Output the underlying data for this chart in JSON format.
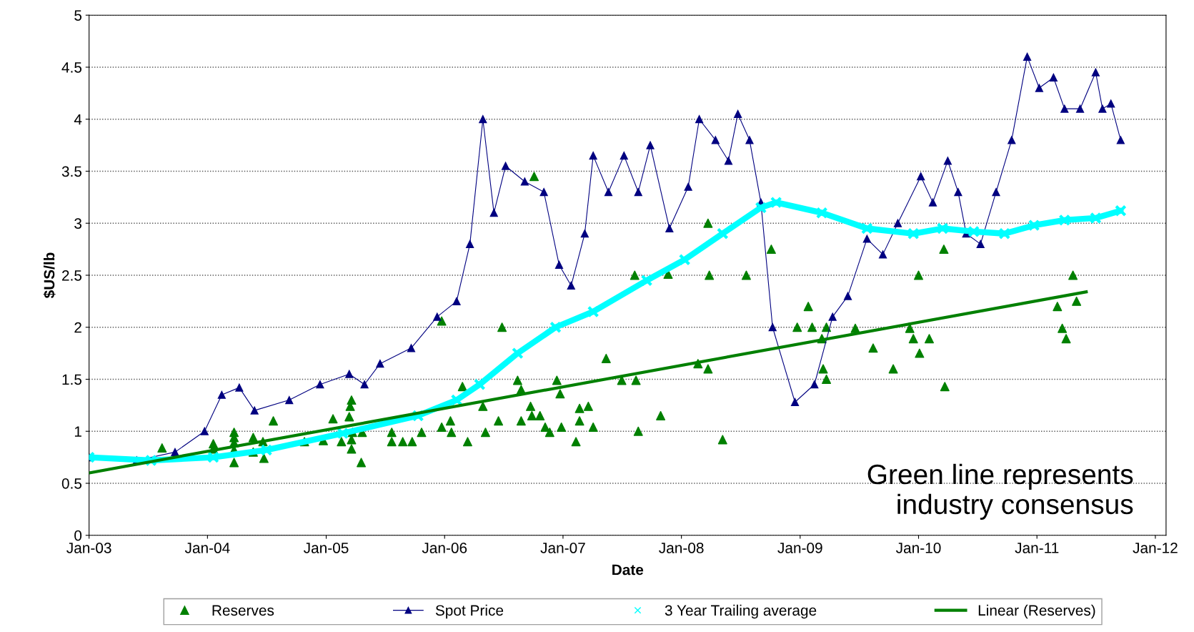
{
  "chart_data": {
    "type": "line",
    "xlabel": "Date",
    "ylabel": "$US/lb",
    "xlim": [
      "2003-01-01",
      "2012-02-03"
    ],
    "ylim": [
      0,
      5
    ],
    "xticks": [
      {
        "value": "2003-01-01",
        "label": "Jan-03"
      },
      {
        "value": "2004-01-01",
        "label": "Jan-04"
      },
      {
        "value": "2005-01-01",
        "label": "Jan-05"
      },
      {
        "value": "2006-01-01",
        "label": "Jan-06"
      },
      {
        "value": "2007-01-01",
        "label": "Jan-07"
      },
      {
        "value": "2008-01-01",
        "label": "Jan-08"
      },
      {
        "value": "2009-01-01",
        "label": "Jan-09"
      },
      {
        "value": "2010-01-01",
        "label": "Jan-10"
      },
      {
        "value": "2011-01-01",
        "label": "Jan-11"
      },
      {
        "value": "2012-01-01",
        "label": "Jan-12"
      }
    ],
    "yticks": [
      0,
      0.5,
      1,
      1.5,
      2,
      2.5,
      3,
      3.5,
      4,
      4.5,
      5
    ],
    "grid": "y",
    "legend": "bottom",
    "annotations": [
      "Green line represents\nindustry consensus"
    ],
    "series": [
      {
        "name": "Reserves",
        "type": "scatter",
        "marker": "triangle",
        "color": "#008000",
        "x": [
          "2003-08-14",
          "2004-01-19",
          "2004-01-19",
          "2004-03-23",
          "2004-03-23",
          "2004-03-23",
          "2004-03-23",
          "2004-03-23",
          "2004-05-21",
          "2004-05-21",
          "2004-06-20",
          "2004-06-23",
          "2004-07-22",
          "2004-10-26",
          "2004-12-23",
          "2005-01-22",
          "2005-02-17",
          "2005-03-13",
          "2005-03-16",
          "2005-03-20",
          "2005-03-20",
          "2005-03-20",
          "2005-03-23",
          "2005-04-19",
          "2005-04-22",
          "2005-07-22",
          "2005-07-22",
          "2005-08-25",
          "2005-09-23",
          "2005-10-22",
          "2005-12-23",
          "2005-12-23",
          "2006-01-19",
          "2006-01-22",
          "2006-02-25",
          "2006-03-13",
          "2006-04-29",
          "2006-05-07",
          "2006-06-16",
          "2006-06-27",
          "2006-08-14",
          "2006-08-25",
          "2006-08-25",
          "2006-09-23",
          "2006-09-27",
          "2006-10-04",
          "2006-10-22",
          "2006-11-07",
          "2006-11-21",
          "2006-12-13",
          "2006-12-23",
          "2006-12-27",
          "2007-02-10",
          "2007-02-21",
          "2007-02-21",
          "2007-03-20",
          "2007-04-04",
          "2007-05-14",
          "2007-07-01",
          "2007-08-10",
          "2007-08-14",
          "2007-08-21",
          "2007-10-29",
          "2007-11-21",
          "2008-02-21",
          "2008-03-23",
          "2008-03-23",
          "2008-03-27",
          "2008-05-07",
          "2008-07-19",
          "2008-10-04",
          "2008-12-23",
          "2009-01-26",
          "2009-02-07",
          "2009-03-09",
          "2009-03-13",
          "2009-03-23",
          "2009-03-23",
          "2009-06-20",
          "2009-08-14",
          "2009-10-15",
          "2009-12-05",
          "2009-12-16",
          "2010-01-01",
          "2010-01-04",
          "2010-02-03",
          "2010-03-20",
          "2010-03-23",
          "2011-03-05",
          "2011-03-20",
          "2011-04-01",
          "2011-04-22",
          "2011-05-03"
        ],
        "values": [
          0.84,
          0.88,
          0.83,
          0.99,
          0.94,
          0.89,
          0.82,
          0.7,
          0.94,
          0.8,
          0.9,
          0.74,
          1.1,
          0.9,
          0.91,
          1.12,
          0.9,
          1.14,
          1.24,
          1.3,
          0.92,
          0.83,
          0.99,
          0.7,
          0.99,
          0.99,
          0.9,
          0.9,
          0.9,
          0.99,
          2.06,
          1.04,
          1.1,
          0.99,
          1.43,
          0.9,
          1.24,
          0.99,
          1.1,
          2.0,
          1.49,
          1.4,
          1.1,
          1.24,
          1.15,
          3.45,
          1.15,
          1.04,
          0.99,
          1.49,
          1.36,
          1.04,
          0.9,
          1.1,
          1.22,
          1.24,
          1.04,
          1.7,
          1.49,
          2.5,
          1.49,
          1.0,
          1.15,
          2.51,
          1.65,
          3.0,
          1.6,
          2.5,
          0.92,
          2.5,
          2.75,
          2.0,
          2.2,
          2.0,
          1.89,
          1.6,
          2.0,
          1.5,
          1.99,
          1.8,
          1.6,
          1.99,
          1.89,
          2.5,
          1.75,
          1.89,
          2.75,
          1.43,
          2.2,
          1.99,
          1.89,
          2.5,
          2.25
        ]
      },
      {
        "name": "Spot Price",
        "type": "line",
        "marker": "triangle",
        "color": "#000080",
        "x": [
          "2003-01-01",
          "2003-05-28",
          "2003-09-23",
          "2003-12-23",
          "2004-02-14",
          "2004-04-08",
          "2004-05-25",
          "2004-09-09",
          "2004-12-13",
          "2005-03-13",
          "2005-04-29",
          "2005-06-16",
          "2005-09-20",
          "2005-12-09",
          "2006-02-07",
          "2006-03-20",
          "2006-04-29",
          "2006-06-02",
          "2006-07-08",
          "2006-09-05",
          "2006-11-03",
          "2006-12-20",
          "2007-01-26",
          "2007-03-09",
          "2007-04-04",
          "2007-05-21",
          "2007-07-08",
          "2007-08-21",
          "2007-09-27",
          "2007-11-25",
          "2008-01-22",
          "2008-02-25",
          "2008-04-15",
          "2008-05-25",
          "2008-06-23",
          "2008-07-29",
          "2008-09-02",
          "2008-10-08",
          "2008-12-16",
          "2009-02-14",
          "2009-04-11",
          "2009-05-28",
          "2009-07-26",
          "2009-09-13",
          "2009-10-29",
          "2010-01-08",
          "2010-02-14",
          "2010-04-01",
          "2010-05-03",
          "2010-05-28",
          "2010-07-11",
          "2010-08-28",
          "2010-10-15",
          "2010-12-02",
          "2011-01-08",
          "2011-02-21",
          "2011-03-27",
          "2011-05-14",
          "2011-07-01",
          "2011-07-22",
          "2011-08-17",
          "2011-09-16"
        ],
        "values": [
          0.75,
          0.72,
          0.8,
          1.0,
          1.35,
          1.42,
          1.2,
          1.3,
          1.45,
          1.55,
          1.45,
          1.65,
          1.8,
          2.1,
          2.25,
          2.8,
          4.0,
          3.1,
          3.55,
          3.4,
          3.3,
          2.6,
          2.4,
          2.9,
          3.65,
          3.3,
          3.65,
          3.3,
          3.75,
          2.95,
          3.35,
          4.0,
          3.8,
          3.6,
          4.05,
          3.8,
          3.2,
          2.0,
          1.28,
          1.45,
          2.1,
          2.3,
          2.85,
          2.7,
          3.0,
          3.45,
          3.2,
          3.6,
          3.3,
          2.9,
          2.8,
          3.3,
          3.8,
          4.6,
          4.3,
          4.4,
          4.1,
          4.1,
          4.45,
          4.1,
          4.15,
          3.8
        ]
      },
      {
        "name": "3 Year Trailing average",
        "type": "line",
        "marker": "cross",
        "color": "#00ffff",
        "x": [
          "2003-01-01",
          "2003-07-11",
          "2004-01-19",
          "2004-07-01",
          "2005-02-21",
          "2005-10-11",
          "2006-02-07",
          "2006-04-19",
          "2006-08-14",
          "2006-12-09",
          "2007-04-04",
          "2007-09-16",
          "2008-01-11",
          "2008-05-07",
          "2008-09-02",
          "2008-10-19",
          "2009-03-09",
          "2009-07-26",
          "2009-12-16",
          "2010-03-16",
          "2010-06-20",
          "2010-09-23",
          "2010-12-23",
          "2011-03-27",
          "2011-07-01",
          "2011-09-16"
        ],
        "values": [
          0.75,
          0.72,
          0.75,
          0.82,
          0.98,
          1.15,
          1.3,
          1.45,
          1.75,
          2.0,
          2.15,
          2.45,
          2.65,
          2.9,
          3.15,
          3.2,
          3.1,
          2.95,
          2.9,
          2.95,
          2.92,
          2.9,
          2.98,
          3.03,
          3.05,
          3.12
        ]
      },
      {
        "name": "Linear (Reserves)",
        "type": "line",
        "marker": "none",
        "color": "#008000",
        "x": [
          "2003-01-01",
          "2011-06-02"
        ],
        "values": [
          0.6,
          2.34
        ]
      }
    ]
  }
}
